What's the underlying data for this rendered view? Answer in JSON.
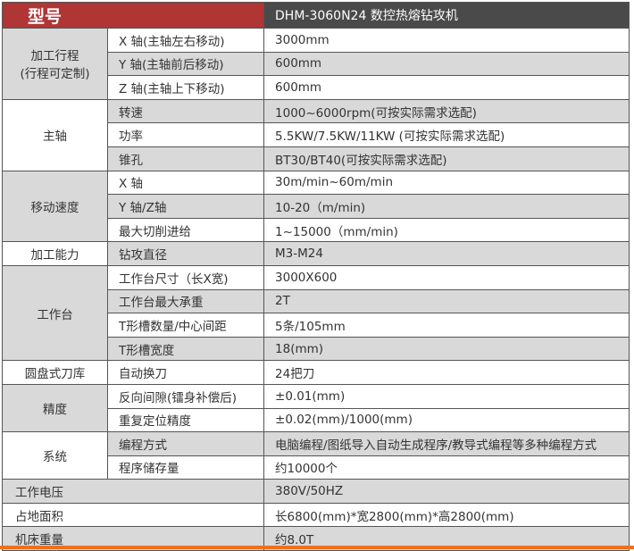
{
  "header": {
    "label": "型号",
    "model": "DHM-3060N24 数控热熔钻攻机"
  },
  "groups": {
    "travel": {
      "label": "加工行程",
      "sub": "(行程可定制)",
      "rows": [
        {
          "name": "X 轴(主轴左右移动)",
          "value": "3000mm"
        },
        {
          "name": "Y 轴(主轴前后移动)",
          "value": "600mm"
        },
        {
          "name": "Z 轴(主轴上下移动)",
          "value": "600mm"
        }
      ]
    },
    "spindle": {
      "label": "主轴",
      "rows": [
        {
          "name": "转速",
          "value": "1000~6000rpm(可按实际需求选配)"
        },
        {
          "name": "功率",
          "value": "5.5KW/7.5KW/11KW (可按实际需求选配)"
        },
        {
          "name": "锥孔",
          "value": "BT30/BT40(可按实际需求选配)"
        }
      ]
    },
    "speed": {
      "label": "移动速度",
      "rows": [
        {
          "name": "X 轴",
          "value": "30m/min~60m/min"
        },
        {
          "name": "Y 轴/Z轴",
          "value": "10-20（m/min)"
        },
        {
          "name": "最大切削进给",
          "value": "1~15000（mm/min)"
        }
      ]
    },
    "capacity": {
      "label": "加工能力",
      "rows": [
        {
          "name": "钻攻直径",
          "value": "M3-M24"
        }
      ]
    },
    "table": {
      "label": "工作台",
      "rows": [
        {
          "name": "工作台尺寸（长X宽)",
          "value": "3000X600"
        },
        {
          "name": "工作台最大承重",
          "value": "2T"
        },
        {
          "name": "T形槽数量/中心间距",
          "value": "5条/105mm"
        },
        {
          "name": "T形槽宽度",
          "value": "18(mm)"
        }
      ]
    },
    "magazine": {
      "label": "圆盘式刀库",
      "rows": [
        {
          "name": "自动换刀",
          "value": "24把刀"
        }
      ]
    },
    "precision": {
      "label": "精度",
      "rows": [
        {
          "name": "反向间隙(镭身补偿后)",
          "value": "±0.01(mm)"
        },
        {
          "name": "重复定位精度",
          "value": "±0.02(mm)/1000(mm)"
        }
      ]
    },
    "system": {
      "label": "系统",
      "rows": [
        {
          "name": "编程方式",
          "value": "电脑编程/图纸导入自动生成程序/教导式编程等多种编程方式"
        },
        {
          "name": "程序储存量",
          "value": "约10000个"
        }
      ]
    }
  },
  "singles": [
    {
      "name": "工作电压",
      "value": "380V/50HZ"
    },
    {
      "name": "占地面积",
      "value": "长6800(mm)*宽2800(mm)*高2800(mm)"
    },
    {
      "name": "机床重量",
      "value": "约8.0T"
    }
  ],
  "colors": {
    "header_red": "#b03535",
    "header_dark": "#4a4a4a",
    "shade": "#d9d9d9",
    "accent_line": "#f07020"
  }
}
